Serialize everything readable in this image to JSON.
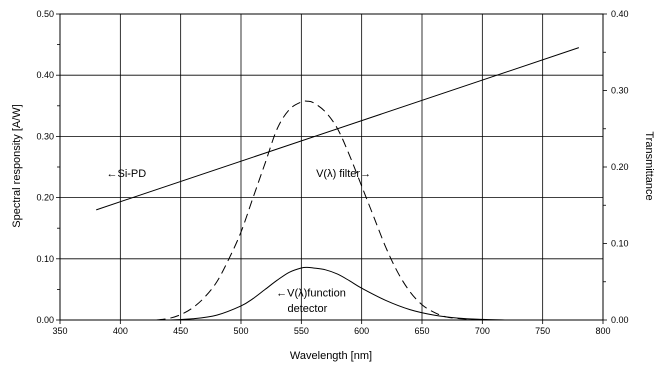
{
  "chart_data": {
    "type": "line",
    "xlabel": "Wavelength [nm]",
    "ylabel_left": "Spectral responsity [A/W]",
    "ylabel_right": "Transmittance",
    "xlim": [
      350,
      800
    ],
    "ylim_left": [
      0,
      0.5
    ],
    "ylim_right": [
      0,
      0.4
    ],
    "x_ticks": [
      "350",
      "400",
      "450",
      "500",
      "550",
      "600",
      "650",
      "700",
      "750",
      "800"
    ],
    "y_left_ticks": [
      "0.00",
      "0.10",
      "0.20",
      "0.30",
      "0.40",
      "0.50"
    ],
    "y_right_ticks": [
      "0.00",
      "0.10",
      "0.20",
      "0.30",
      "0.40"
    ],
    "grid": true,
    "series": [
      {
        "axis": "left",
        "style": "solid",
        "x": [
          380,
          780
        ],
        "y": [
          0.18,
          0.445
        ]
      },
      {
        "axis": "right",
        "style": "dashed",
        "x": [
          430,
          440,
          450,
          460,
          470,
          480,
          490,
          500,
          510,
          520,
          530,
          540,
          550,
          555,
          560,
          570,
          580,
          590,
          600,
          610,
          620,
          630,
          640,
          650,
          660,
          670,
          680,
          690,
          700
        ],
        "y": [
          0.0,
          0.002,
          0.007,
          0.016,
          0.03,
          0.05,
          0.08,
          0.115,
          0.16,
          0.205,
          0.25,
          0.275,
          0.285,
          0.286,
          0.284,
          0.272,
          0.25,
          0.215,
          0.175,
          0.135,
          0.095,
          0.062,
          0.037,
          0.02,
          0.01,
          0.004,
          0.002,
          0.001,
          0.0
        ]
      },
      {
        "axis": "left",
        "style": "solid",
        "x": [
          440,
          460,
          480,
          500,
          510,
          520,
          530,
          540,
          550,
          555,
          560,
          570,
          580,
          590,
          600,
          620,
          640,
          660,
          680,
          700,
          720
        ],
        "y": [
          0.0,
          0.002,
          0.008,
          0.023,
          0.035,
          0.05,
          0.065,
          0.078,
          0.085,
          0.086,
          0.085,
          0.082,
          0.075,
          0.064,
          0.052,
          0.032,
          0.017,
          0.008,
          0.003,
          0.001,
          0.0
        ]
      }
    ],
    "annotations": [
      {
        "text": "←Si-PD",
        "x": 405,
        "y": 0.24,
        "axis": "left"
      },
      {
        "text": "V(λ) filter→",
        "x": 585,
        "y": 0.24,
        "axis": "left"
      },
      {
        "text": "←V(λ)function",
        "x": 558,
        "y": 0.045,
        "axis": "left"
      },
      {
        "text": "detector",
        "x": 555,
        "y": 0.02,
        "axis": "left"
      }
    ]
  }
}
